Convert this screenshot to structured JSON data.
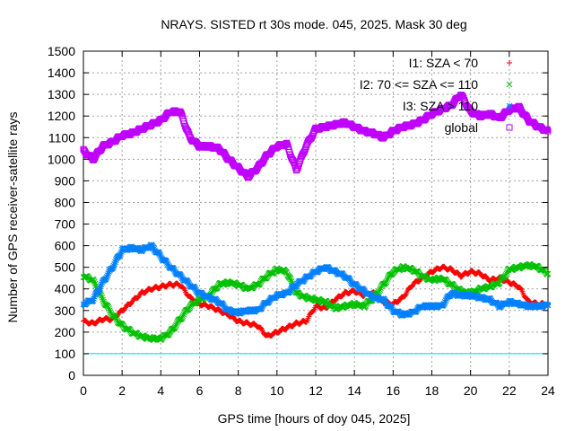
{
  "chart_data": {
    "type": "scatter",
    "title": "NRAYS. SISTED rt 30s mode. 045, 2025. Mask 30 deg",
    "xlabel": "GPS time [hours of doy 045, 2025]",
    "ylabel": "Number of GPS receiver-satellite rays",
    "xlim": [
      0,
      24
    ],
    "ylim": [
      0,
      1500
    ],
    "xticks": [
      0,
      2,
      4,
      6,
      8,
      10,
      12,
      14,
      16,
      18,
      20,
      22,
      24
    ],
    "yticks": [
      0,
      100,
      200,
      300,
      400,
      500,
      600,
      700,
      800,
      900,
      1000,
      1100,
      1200,
      1300,
      1400,
      1500
    ],
    "grid": true,
    "legend_position": "top-right",
    "reference_line": {
      "y": 100,
      "color": "#00dddd"
    },
    "series": [
      {
        "name": "I1: SZA < 70",
        "color": "#ff0000",
        "marker": "plus",
        "x": [
          0.0,
          0.5,
          1.0,
          1.5,
          2.0,
          2.5,
          3.0,
          3.5,
          4.0,
          4.5,
          5.0,
          5.5,
          6.0,
          6.5,
          7.0,
          7.5,
          8.0,
          8.5,
          9.0,
          9.5,
          10.0,
          10.5,
          11.0,
          11.5,
          12.0,
          12.5,
          13.0,
          13.5,
          14.0,
          14.5,
          15.0,
          15.5,
          16.0,
          16.5,
          17.0,
          17.5,
          18.0,
          18.5,
          19.0,
          19.5,
          20.0,
          20.5,
          21.0,
          21.5,
          22.0,
          22.5,
          23.0,
          23.5,
          24.0
        ],
        "y": [
          250,
          240,
          260,
          260,
          300,
          340,
          380,
          400,
          410,
          420,
          420,
          360,
          330,
          320,
          300,
          280,
          250,
          240,
          230,
          180,
          200,
          220,
          240,
          250,
          320,
          310,
          350,
          380,
          390,
          370,
          380,
          340,
          330,
          360,
          420,
          450,
          480,
          500,
          490,
          460,
          480,
          470,
          440,
          450,
          430,
          410,
          340,
          330,
          330
        ]
      },
      {
        "name": "I2: 70 <= SZA <= 110",
        "color": "#00c000",
        "marker": "x",
        "x": [
          0.0,
          0.5,
          1.0,
          1.5,
          2.0,
          2.5,
          3.0,
          3.5,
          4.0,
          4.5,
          5.0,
          5.5,
          6.0,
          6.5,
          7.0,
          7.5,
          8.0,
          8.5,
          9.0,
          9.5,
          10.0,
          10.5,
          11.0,
          11.5,
          12.0,
          12.5,
          13.0,
          13.5,
          14.0,
          14.5,
          15.0,
          15.5,
          16.0,
          16.5,
          17.0,
          17.5,
          18.0,
          18.5,
          19.0,
          19.5,
          20.0,
          20.5,
          21.0,
          21.5,
          22.0,
          22.5,
          23.0,
          23.5,
          24.0
        ],
        "y": [
          460,
          440,
          350,
          280,
          230,
          200,
          180,
          170,
          170,
          200,
          260,
          320,
          350,
          370,
          420,
          430,
          420,
          400,
          420,
          460,
          490,
          480,
          380,
          360,
          350,
          340,
          310,
          320,
          330,
          320,
          360,
          420,
          480,
          500,
          490,
          460,
          440,
          450,
          420,
          390,
          380,
          400,
          410,
          430,
          490,
          500,
          510,
          500,
          470
        ]
      },
      {
        "name": "I3: SZA > 110",
        "color": "#0080ff",
        "marker": "star",
        "x": [
          0.0,
          0.5,
          1.0,
          1.5,
          2.0,
          2.5,
          3.0,
          3.5,
          4.0,
          4.5,
          5.0,
          5.5,
          6.0,
          6.5,
          7.0,
          7.5,
          8.0,
          8.5,
          9.0,
          9.5,
          10.0,
          10.5,
          11.0,
          11.5,
          12.0,
          12.5,
          13.0,
          13.5,
          14.0,
          14.5,
          15.0,
          15.5,
          16.0,
          16.5,
          17.0,
          17.5,
          18.0,
          18.5,
          19.0,
          19.5,
          20.0,
          20.5,
          21.0,
          21.5,
          22.0,
          22.5,
          23.0,
          23.5,
          24.0
        ],
        "y": [
          330,
          350,
          430,
          500,
          580,
          590,
          580,
          600,
          550,
          500,
          460,
          420,
          380,
          360,
          340,
          300,
          290,
          300,
          300,
          340,
          370,
          380,
          420,
          450,
          480,
          500,
          480,
          460,
          420,
          390,
          360,
          350,
          300,
          280,
          290,
          320,
          320,
          320,
          380,
          370,
          370,
          360,
          350,
          320,
          340,
          330,
          320,
          320,
          325
        ]
      },
      {
        "name": "global",
        "color": "#c000ff",
        "marker": "square",
        "x": [
          0.0,
          0.5,
          1.0,
          1.5,
          2.0,
          2.5,
          3.0,
          3.5,
          4.0,
          4.5,
          5.0,
          5.5,
          6.0,
          6.5,
          7.0,
          7.5,
          8.0,
          8.5,
          9.0,
          9.5,
          10.0,
          10.5,
          11.0,
          11.5,
          12.0,
          12.5,
          13.0,
          13.5,
          14.0,
          14.5,
          15.0,
          15.5,
          16.0,
          16.5,
          17.0,
          17.5,
          18.0,
          18.5,
          19.0,
          19.5,
          20.0,
          20.5,
          21.0,
          21.5,
          22.0,
          22.5,
          23.0,
          23.5,
          24.0
        ],
        "y": [
          1040,
          1000,
          1060,
          1080,
          1110,
          1120,
          1140,
          1160,
          1180,
          1220,
          1220,
          1100,
          1060,
          1060,
          1050,
          1000,
          960,
          920,
          960,
          1020,
          1060,
          1070,
          950,
          1060,
          1140,
          1150,
          1160,
          1170,
          1150,
          1130,
          1120,
          1100,
          1130,
          1150,
          1160,
          1180,
          1210,
          1230,
          1250,
          1300,
          1220,
          1200,
          1210,
          1190,
          1230,
          1240,
          1180,
          1150,
          1130
        ]
      }
    ]
  }
}
